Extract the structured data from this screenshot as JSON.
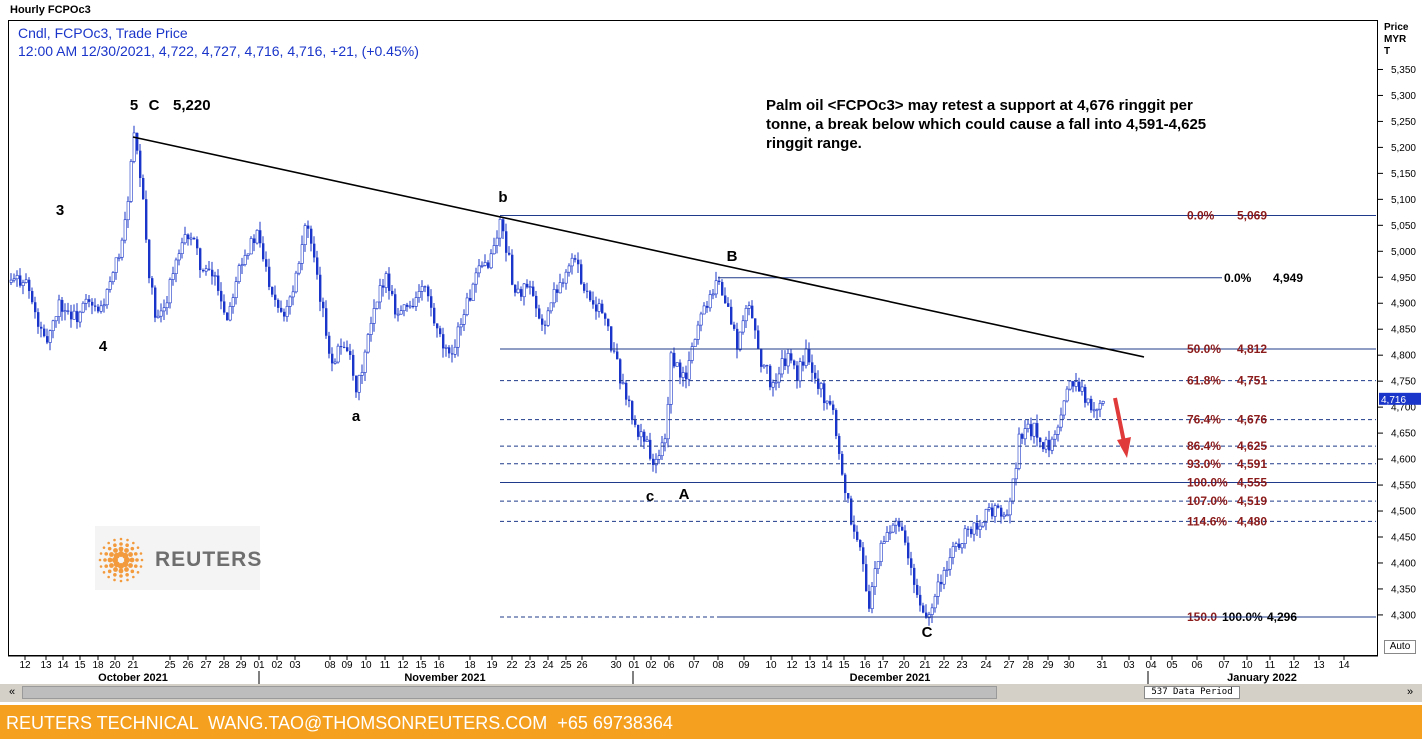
{
  "window_title": "Hourly FCPOc3",
  "info": {
    "line1": "Cndl, FCPOc3, Trade Price",
    "line2": "12:00 AM 12/30/2021, 4,722, 4,727, 4,716, 4,716, +21, (+0.45%)"
  },
  "axis_header": [
    "Price",
    "MYR",
    "T"
  ],
  "note": "Palm oil <FCPOc3> may retest a support at 4,676 ringgit per tonne, a break below which could cause a fall into 4,591-4,625 ringgit range.",
  "logo_text": "REUTERS",
  "data_period": "537 Data Period",
  "auto_label": "Auto",
  "footer": "REUTERS TECHNICAL  WANG.TAO@THOMSONREUTERS.COM  +65 69738364",
  "scroll": {
    "left": "«",
    "right": "»"
  },
  "colors": {
    "candle": "#1a35c9",
    "fib_label": "#8b1a1a",
    "trendline": "#000000",
    "arrow": "#e03a3a",
    "footer_bg": "#f5a01e",
    "info_text": "#1a35c9"
  },
  "chart_data": {
    "type": "candlestick",
    "title": "Hourly FCPOc3",
    "ylabel": "Price MYR T",
    "ylim": [
      4255,
      5400
    ],
    "yticks": [
      4300,
      4350,
      4400,
      4450,
      4500,
      4550,
      4600,
      4650,
      4700,
      4750,
      4800,
      4850,
      4900,
      4950,
      5000,
      5050,
      5100,
      5150,
      5200,
      5250,
      5300,
      5350
    ],
    "ytick_labels": [
      "4,300",
      "4,350",
      "4,400",
      "4,450",
      "4,500",
      "4,550",
      "4,600",
      "4,650",
      "4,700",
      "4,750",
      "4,800",
      "4,850",
      "4,900",
      "4,950",
      "5,000",
      "5,050",
      "5,100",
      "5,150",
      "5,200",
      "5,250",
      "5,300",
      "5,350"
    ],
    "last_price_label": "4,716",
    "last_price": 4716,
    "xtick_labels": [
      "12",
      "13",
      "14",
      "15",
      "18",
      "20",
      "21",
      "25",
      "26",
      "27",
      "28",
      "29",
      "01",
      "02",
      "03",
      "08",
      "09",
      "10",
      "11",
      "12",
      "15",
      "16",
      "18",
      "19",
      "22",
      "23",
      "24",
      "25",
      "26",
      "30",
      "01",
      "02",
      "06",
      "07",
      "08",
      "09",
      "10",
      "12",
      "13",
      "14",
      "15",
      "16",
      "17",
      "20",
      "21",
      "22",
      "23",
      "24",
      "27",
      "28",
      "29",
      "30",
      "31",
      "03",
      "04",
      "05",
      "06",
      "07",
      "10",
      "11",
      "12",
      "13",
      "14"
    ],
    "month_labels": [
      "October 2021",
      "November 2021",
      "December 2021",
      "January 2022"
    ],
    "key_points": [
      {
        "date": "2021-10-21",
        "price": 5220
      },
      {
        "date": "2021-11-19",
        "price": 5069
      },
      {
        "date": "2021-12-02",
        "price": 4555
      },
      {
        "date": "2021-12-08",
        "price": 4949
      },
      {
        "date": "2021-12-20",
        "price": 4296
      },
      {
        "date": "2021-12-29",
        "price": 4800
      },
      {
        "date": "2021-12-30",
        "price": 4716
      }
    ],
    "fib_levels": [
      {
        "label": "0.0%",
        "value_label": "5,069",
        "price": 5069
      },
      {
        "label": "0.0%",
        "value_label": "4,949",
        "price": 4949
      },
      {
        "label": "50.0%",
        "value_label": "4,812",
        "price": 4812
      },
      {
        "label": "61.8%",
        "value_label": "4,751",
        "price": 4751
      },
      {
        "label": "76.4%",
        "value_label": "4,676",
        "price": 4676
      },
      {
        "label": "86.4%",
        "value_label": "4,625",
        "price": 4625
      },
      {
        "label": "93.0%",
        "value_label": "4,591",
        "price": 4591
      },
      {
        "label": "100.0%",
        "value_label": "4,555",
        "price": 4555
      },
      {
        "label": "107.0%",
        "value_label": "4,519",
        "price": 4519
      },
      {
        "label": "114.6%",
        "value_label": "4,480",
        "price": 4480
      },
      {
        "label": "150.0",
        "value_label": "100.0%",
        "price": 4296
      }
    ],
    "bottom_value_label": "4,296",
    "trendline": {
      "from_price": 5220,
      "to_price": 4800
    },
    "wave_labels": [
      "5",
      "C",
      "5,220",
      "3",
      "4",
      "a",
      "b",
      "c",
      "A",
      "B",
      "C"
    ]
  }
}
